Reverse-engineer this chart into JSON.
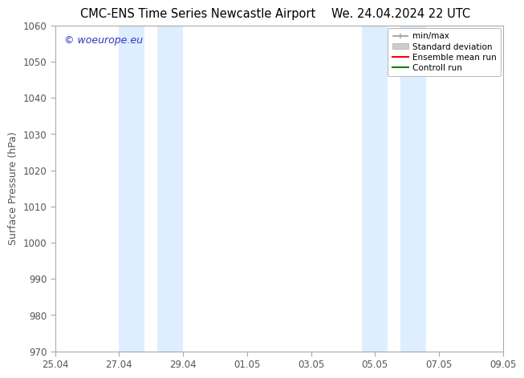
{
  "title_left": "CMC-ENS Time Series Newcastle Airport",
  "title_right": "We. 24.04.2024 22 UTC",
  "ylabel": "Surface Pressure (hPa)",
  "ylim": [
    970,
    1060
  ],
  "yticks": [
    970,
    980,
    990,
    1000,
    1010,
    1020,
    1030,
    1040,
    1050,
    1060
  ],
  "xtick_labels": [
    "25.04",
    "27.04",
    "29.04",
    "01.05",
    "03.05",
    "05.05",
    "07.05",
    "09.05"
  ],
  "xtick_positions": [
    0,
    2,
    4,
    6,
    8,
    10,
    12,
    14
  ],
  "xlim": [
    0,
    14
  ],
  "shade_bands": [
    {
      "x_start": 2.0,
      "x_end": 2.8
    },
    {
      "x_start": 3.2,
      "x_end": 4.0
    },
    {
      "x_start": 9.6,
      "x_end": 10.4
    },
    {
      "x_start": 10.8,
      "x_end": 11.6
    }
  ],
  "shade_color": "#ddeeff",
  "watermark_text": "© woeurope.eu",
  "watermark_color": "#3333bb",
  "legend_entries": [
    {
      "label": "min/max",
      "color": "#aaaaaa",
      "lw": 1.5
    },
    {
      "label": "Standard deviation",
      "color": "#cccccc",
      "lw": 6
    },
    {
      "label": "Ensemble mean run",
      "color": "red",
      "lw": 1.5
    },
    {
      "label": "Controll run",
      "color": "green",
      "lw": 1.5
    }
  ],
  "bg_color": "#ffffff",
  "spine_color": "#aaaaaa",
  "tick_color": "#555555",
  "font_family": "DejaVu Sans",
  "title_fontsize": 10.5,
  "tick_fontsize": 8.5,
  "ylabel_fontsize": 9,
  "watermark_fontsize": 9,
  "legend_fontsize": 7.5
}
